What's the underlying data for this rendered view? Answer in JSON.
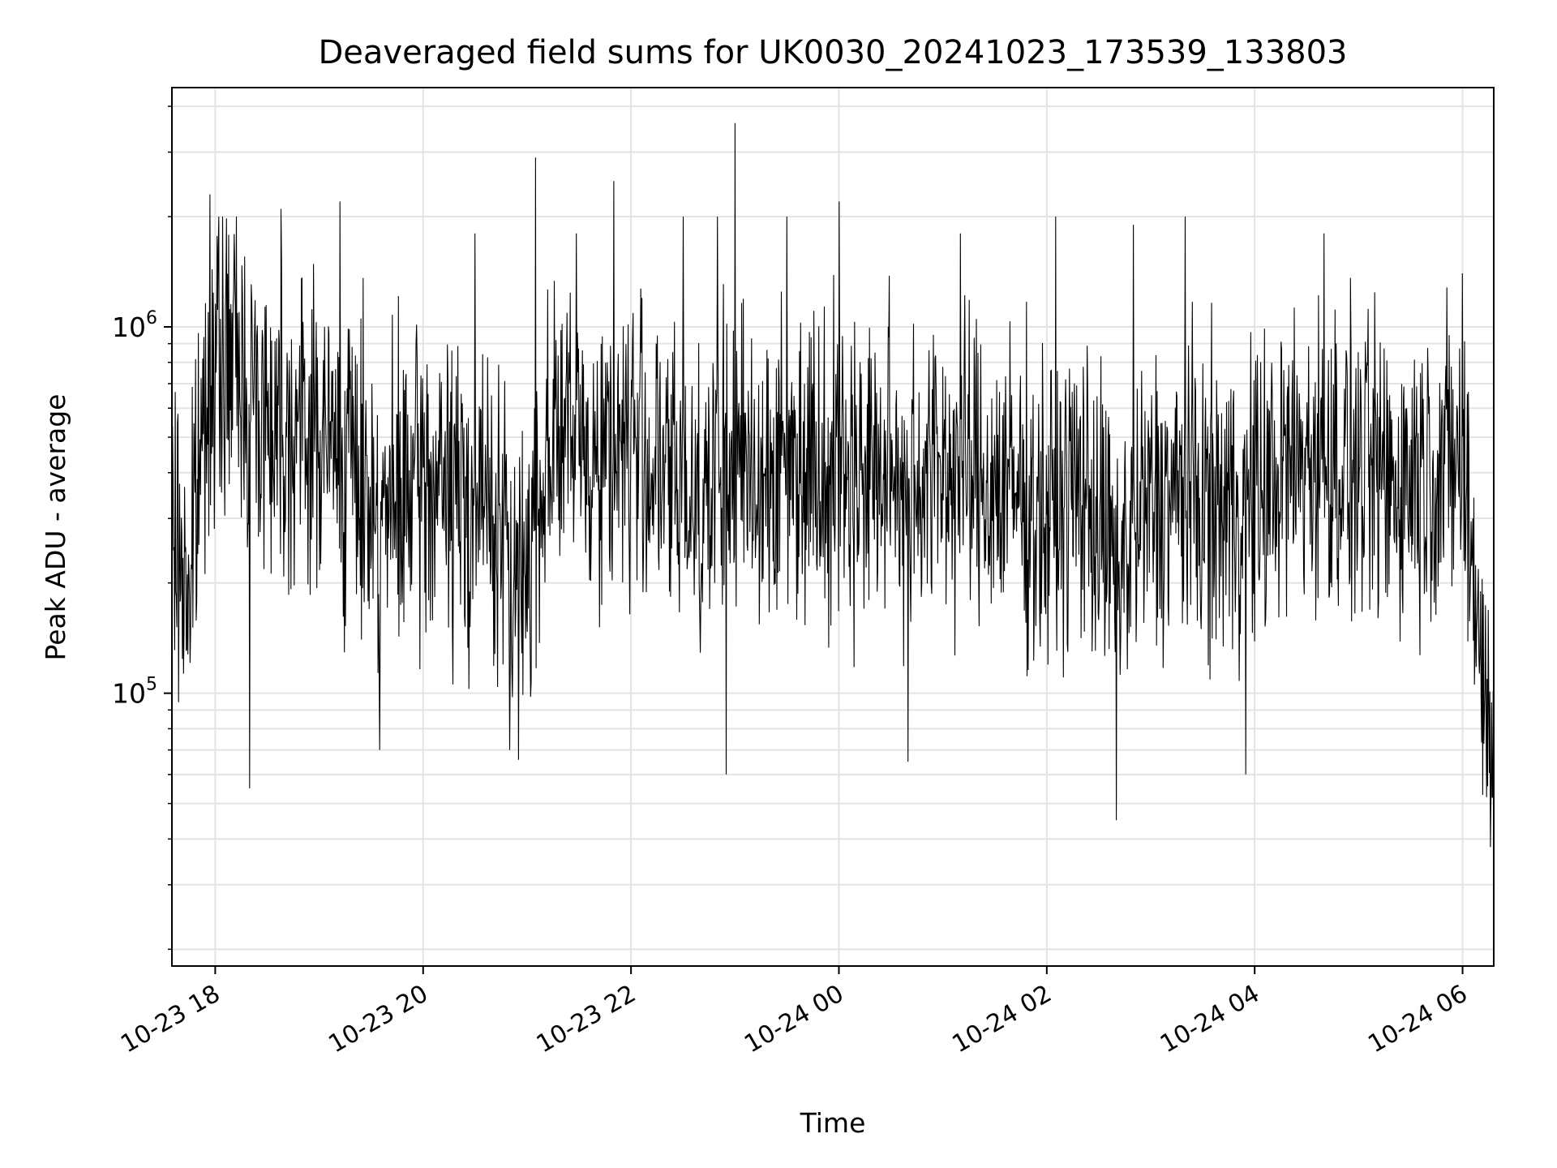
{
  "chart_data": {
    "type": "line",
    "title": "Deaveraged field sums for UK0030_20241023_173539_133803",
    "xlabel": "Time",
    "ylabel": "Peak ADU - average",
    "x_range": [
      "2024-10-23 17:35",
      "2024-10-24 06:18"
    ],
    "xticks": [
      {
        "time": "2024-10-23 18:00",
        "label": "10-23 18"
      },
      {
        "time": "2024-10-23 20:00",
        "label": "10-23 20"
      },
      {
        "time": "2024-10-23 22:00",
        "label": "10-23 22"
      },
      {
        "time": "2024-10-24 00:00",
        "label": "10-24 00"
      },
      {
        "time": "2024-10-24 02:00",
        "label": "10-24 02"
      },
      {
        "time": "2024-10-24 04:00",
        "label": "10-24 04"
      },
      {
        "time": "2024-10-24 06:00",
        "label": "10-24 06"
      }
    ],
    "y_scale": "log",
    "ylim": [
      18000,
      4500000
    ],
    "yticks": [
      {
        "value": 100000,
        "base": "10",
        "exp": "5"
      },
      {
        "value": 1000000,
        "base": "10",
        "exp": "6"
      }
    ],
    "grid": true,
    "line_color": "#000000",
    "grid_color": "#e3e3e3",
    "series": [
      {
        "points": [
          [
            "2024-10-23 17:35",
            280000
          ],
          [
            "2024-10-23 17:45",
            190000
          ],
          [
            "2024-10-23 17:55",
            700000
          ],
          [
            "2024-10-23 18:10",
            850000
          ],
          [
            "2024-10-23 18:25",
            600000
          ],
          [
            "2024-10-23 18:45",
            550000
          ],
          [
            "2024-10-23 19:00",
            500000
          ],
          [
            "2024-10-23 19:20",
            420000
          ],
          [
            "2024-10-23 19:40",
            300000
          ],
          [
            "2024-10-23 20:00",
            380000
          ],
          [
            "2024-10-23 20:20",
            350000
          ],
          [
            "2024-10-23 20:40",
            320000
          ],
          [
            "2024-10-23 20:55",
            180000
          ],
          [
            "2024-10-23 21:15",
            550000
          ],
          [
            "2024-10-23 21:40",
            450000
          ],
          [
            "2024-10-23 22:00",
            500000
          ],
          [
            "2024-10-23 22:20",
            380000
          ],
          [
            "2024-10-23 22:40",
            350000
          ],
          [
            "2024-10-23 23:00",
            420000
          ],
          [
            "2024-10-23 23:20",
            400000
          ],
          [
            "2024-10-23 23:40",
            450000
          ],
          [
            "2024-10-24 00:00",
            430000
          ],
          [
            "2024-10-24 00:20",
            400000
          ],
          [
            "2024-10-24 00:40",
            380000
          ],
          [
            "2024-10-24 01:00",
            420000
          ],
          [
            "2024-10-24 01:20",
            380000
          ],
          [
            "2024-10-24 01:40",
            360000
          ],
          [
            "2024-10-24 02:00",
            300000
          ],
          [
            "2024-10-24 02:20",
            380000
          ],
          [
            "2024-10-24 02:40",
            220000
          ],
          [
            "2024-10-24 03:00",
            330000
          ],
          [
            "2024-10-24 03:20",
            350000
          ],
          [
            "2024-10-24 03:40",
            320000
          ],
          [
            "2024-10-24 04:00",
            340000
          ],
          [
            "2024-10-24 04:20",
            420000
          ],
          [
            "2024-10-24 04:40",
            450000
          ],
          [
            "2024-10-24 05:00",
            400000
          ],
          [
            "2024-10-24 05:20",
            380000
          ],
          [
            "2024-10-24 05:40",
            420000
          ],
          [
            "2024-10-24 06:00",
            430000
          ],
          [
            "2024-10-24 06:10",
            150000
          ],
          [
            "2024-10-24 06:18",
            50000
          ]
        ],
        "spikes": [
          [
            "2024-10-23 17:57",
            2300000
          ],
          [
            "2024-10-23 18:20",
            55000
          ],
          [
            "2024-10-23 18:38",
            2100000
          ],
          [
            "2024-10-23 19:12",
            2200000
          ],
          [
            "2024-10-23 19:35",
            70000
          ],
          [
            "2024-10-23 20:30",
            1800000
          ],
          [
            "2024-10-23 20:50",
            70000
          ],
          [
            "2024-10-23 21:05",
            2900000
          ],
          [
            "2024-10-23 21:50",
            2500000
          ],
          [
            "2024-10-23 22:30",
            2000000
          ],
          [
            "2024-10-23 22:50",
            2000000
          ],
          [
            "2024-10-23 22:55",
            60000
          ],
          [
            "2024-10-23 23:00",
            3600000
          ],
          [
            "2024-10-23 23:30",
            2000000
          ],
          [
            "2024-10-24 00:00",
            2200000
          ],
          [
            "2024-10-24 00:40",
            65000
          ],
          [
            "2024-10-24 01:10",
            1800000
          ],
          [
            "2024-10-24 02:05",
            2000000
          ],
          [
            "2024-10-24 02:40",
            45000
          ],
          [
            "2024-10-24 02:50",
            1900000
          ],
          [
            "2024-10-24 03:20",
            2000000
          ],
          [
            "2024-10-24 03:55",
            60000
          ],
          [
            "2024-10-24 04:40",
            1800000
          ],
          [
            "2024-10-24 06:00",
            1400000
          ],
          [
            "2024-10-24 06:16",
            38000
          ]
        ]
      }
    ]
  }
}
